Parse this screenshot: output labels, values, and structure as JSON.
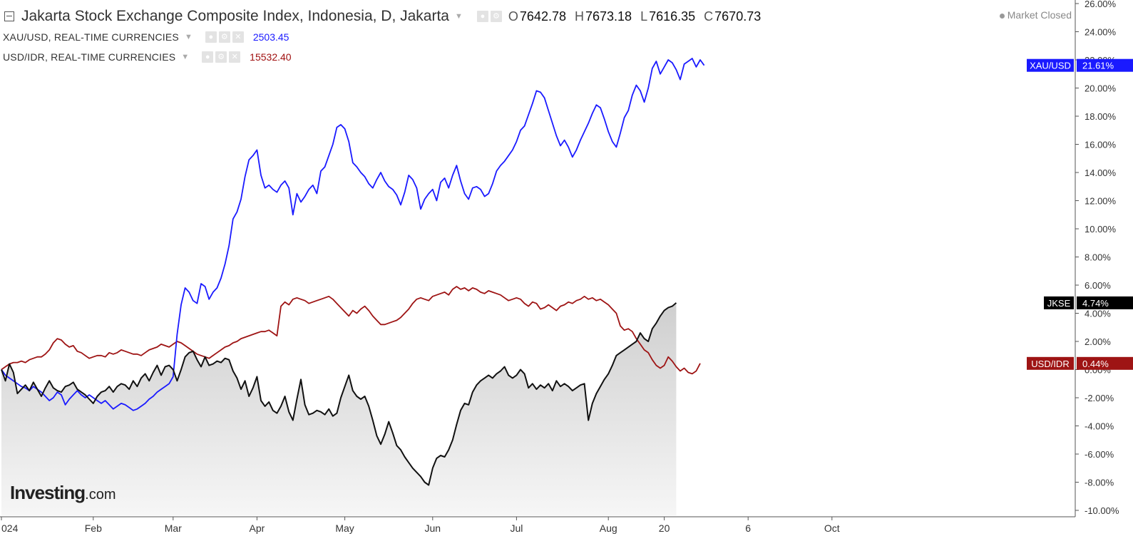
{
  "header": {
    "title": "Jakarta Stock Exchange Composite Index, Indonesia, D, Jakarta",
    "ohlc": [
      {
        "key": "O",
        "value": "7642.78"
      },
      {
        "key": "H",
        "value": "7673.18"
      },
      {
        "key": "L",
        "value": "7616.35"
      },
      {
        "key": "C",
        "value": "7670.73"
      }
    ],
    "status": "Market Closed"
  },
  "compare": [
    {
      "label": "XAU/USD, REAL-TIME CURRENCIES",
      "value": "2503.45",
      "color": "#1a1aff"
    },
    {
      "label": "USD/IDR, REAL-TIME CURRENCIES",
      "value": "15532.40",
      "color": "#a01010"
    }
  ],
  "brand": {
    "name": "Investing",
    "suffix": ".com"
  },
  "colors": {
    "xau": "#1a1aff",
    "idr": "#9e1414",
    "jkse": "#111111",
    "jkse_area_top": "#cfcfcf",
    "jkse_area_bottom": "#f4f4f4",
    "axis": "#333333"
  },
  "chart_data": {
    "type": "line",
    "ylim": [
      -10,
      26
    ],
    "y_unit": "%",
    "y_ticks": [
      "26.00%",
      "24.00%",
      "22.00%",
      "20.00%",
      "18.00%",
      "16.00%",
      "14.00%",
      "12.00%",
      "10.00%",
      "8.00%",
      "6.00%",
      "4.00%",
      "2.00%",
      "0.00%",
      "-2.00%",
      "-4.00%",
      "-6.00%",
      "-8.00%",
      "-10.00%"
    ],
    "x_ticks": [
      {
        "label": "024",
        "i": 0
      },
      {
        "label": "Feb",
        "i": 23
      },
      {
        "label": "Mar",
        "i": 43
      },
      {
        "label": "Apr",
        "i": 64
      },
      {
        "label": "May",
        "i": 86
      },
      {
        "label": "Jun",
        "i": 108
      },
      {
        "label": "Jul",
        "i": 129
      },
      {
        "label": "Aug",
        "i": 152
      },
      {
        "label": "20",
        "i": 166
      },
      {
        "label": "6",
        "i": 187
      },
      {
        "label": "Oct",
        "i": 208
      }
    ],
    "x_max": 222,
    "series": [
      {
        "name": "XAU/USD",
        "last_label": "21.61%",
        "values": [
          0,
          -0.4,
          -0.6,
          -0.8,
          -1.0,
          -1.2,
          -1.3,
          -1.5,
          -1.2,
          -1.4,
          -1.6,
          -1.9,
          -2.2,
          -2.0,
          -1.6,
          -1.8,
          -2.5,
          -2.1,
          -1.8,
          -1.5,
          -1.8,
          -2.0,
          -1.8,
          -2.0,
          -2.2,
          -2.4,
          -2.2,
          -2.5,
          -2.8,
          -2.6,
          -2.4,
          -2.5,
          -2.7,
          -2.9,
          -2.8,
          -2.6,
          -2.4,
          -2.1,
          -1.9,
          -1.6,
          -1.4,
          -1.2,
          -1.0,
          -0.5,
          2.5,
          4.6,
          5.8,
          5.5,
          4.9,
          4.7,
          6.1,
          5.9,
          5.0,
          5.5,
          5.8,
          6.5,
          7.5,
          8.8,
          10.7,
          11.2,
          12.1,
          13.7,
          14.9,
          15.2,
          15.6,
          13.8,
          12.9,
          13.1,
          12.8,
          12.6,
          13.1,
          13.4,
          12.9,
          11.0,
          12.5,
          11.9,
          12.3,
          12.8,
          13.1,
          12.5,
          14.1,
          14.4,
          15.2,
          16.0,
          17.2,
          17.4,
          17.1,
          16.2,
          14.7,
          14.4,
          14.0,
          13.7,
          13.2,
          12.9,
          13.5,
          14.0,
          13.4,
          13.0,
          12.8,
          12.4,
          11.7,
          12.6,
          13.8,
          13.5,
          12.9,
          11.4,
          12.1,
          12.5,
          12.8,
          12.0,
          13.3,
          13.6,
          12.9,
          13.8,
          14.5,
          13.4,
          12.5,
          12.1,
          12.9,
          13.0,
          12.8,
          12.3,
          12.5,
          13.2,
          14.1,
          14.5,
          14.8,
          15.2,
          15.6,
          16.2,
          17.0,
          17.3,
          18.1,
          18.9,
          19.8,
          19.7,
          19.3,
          18.4,
          17.5,
          16.6,
          15.9,
          16.3,
          15.8,
          15.1,
          15.6,
          16.3,
          16.9,
          17.5,
          18.2,
          18.8,
          18.6,
          17.8,
          16.9,
          16.2,
          15.8,
          16.8,
          17.9,
          18.4,
          19.5,
          20.2,
          19.8,
          19.0,
          20.0,
          21.4,
          21.9,
          21.0,
          21.5,
          22.0,
          21.8,
          21.3,
          20.6,
          21.7,
          21.9,
          22.1,
          21.5,
          22.0,
          21.61
        ]
      },
      {
        "name": "USD/IDR",
        "last_label": "0.44%",
        "values": [
          0,
          0.2,
          0.4,
          0.5,
          0.5,
          0.6,
          0.5,
          0.7,
          0.8,
          0.9,
          0.9,
          1.1,
          1.4,
          1.9,
          2.2,
          2.1,
          1.8,
          1.6,
          1.7,
          1.3,
          1.2,
          1.0,
          0.8,
          0.9,
          1.0,
          1.0,
          0.9,
          1.2,
          1.1,
          1.2,
          1.4,
          1.3,
          1.2,
          1.1,
          1.1,
          1.0,
          1.2,
          1.4,
          1.5,
          1.6,
          1.8,
          1.7,
          1.6,
          1.8,
          2.0,
          1.9,
          1.7,
          1.5,
          1.3,
          1.1,
          1.0,
          0.9,
          0.8,
          1.0,
          1.2,
          1.4,
          1.6,
          1.7,
          1.9,
          2.0,
          2.2,
          2.3,
          2.4,
          2.5,
          2.6,
          2.7,
          2.7,
          2.8,
          2.6,
          2.4,
          4.5,
          4.8,
          4.6,
          5.0,
          5.1,
          5.0,
          4.9,
          4.7,
          4.8,
          4.9,
          5.0,
          5.1,
          5.2,
          5.0,
          4.7,
          4.4,
          4.1,
          3.8,
          4.2,
          4.0,
          4.3,
          4.5,
          4.2,
          3.8,
          3.5,
          3.2,
          3.2,
          3.3,
          3.4,
          3.5,
          3.7,
          4.0,
          4.3,
          4.7,
          5.0,
          5.1,
          5.0,
          4.9,
          5.2,
          5.3,
          5.4,
          5.5,
          5.3,
          5.7,
          5.9,
          5.7,
          5.8,
          5.6,
          5.8,
          5.7,
          5.5,
          5.4,
          5.6,
          5.5,
          5.4,
          5.3,
          5.1,
          4.9,
          5.0,
          5.1,
          5.0,
          4.7,
          4.5,
          4.8,
          4.7,
          4.3,
          4.4,
          4.6,
          4.4,
          4.2,
          4.5,
          4.6,
          4.8,
          4.7,
          4.9,
          5.0,
          5.2,
          5.0,
          5.1,
          4.9,
          5.0,
          4.8,
          4.6,
          4.3,
          4.0,
          3.1,
          2.8,
          2.9,
          2.7,
          2.2,
          1.8,
          1.4,
          1.2,
          0.7,
          0.3,
          0.1,
          0.3,
          0.9,
          0.6,
          0.2,
          -0.1,
          0.1,
          -0.2,
          -0.3,
          -0.1,
          0.44
        ]
      },
      {
        "name": "JKSE",
        "last_label": "4.74%",
        "values": [
          0,
          -0.8,
          0.4,
          -0.2,
          -1.7,
          -1.4,
          -1.1,
          -1.5,
          -0.9,
          -1.4,
          -1.9,
          -1.3,
          -0.8,
          -1.3,
          -1.5,
          -1.6,
          -1.2,
          -1.1,
          -0.9,
          -1.4,
          -1.6,
          -1.8,
          -2.1,
          -2.4,
          -1.9,
          -1.6,
          -1.5,
          -1.2,
          -1.6,
          -1.2,
          -1.0,
          -1.1,
          -1.4,
          -0.8,
          -1.2,
          -0.6,
          -0.3,
          -0.8,
          -0.2,
          0.3,
          -0.4,
          0.2,
          0.3,
          0.0,
          -0.8,
          0.0,
          0.9,
          1.2,
          1.3,
          0.7,
          0.2,
          0.9,
          0.3,
          0.4,
          0.6,
          0.5,
          0.8,
          0.7,
          -0.1,
          -0.6,
          -1.4,
          -0.8,
          -1.9,
          -1.3,
          -0.5,
          -2.2,
          -2.6,
          -2.3,
          -2.9,
          -3.1,
          -2.6,
          -1.9,
          -3.0,
          -3.6,
          -2.1,
          -0.7,
          -2.5,
          -3.2,
          -3.1,
          -2.9,
          -3.0,
          -3.2,
          -2.8,
          -3.3,
          -3.1,
          -2.0,
          -1.2,
          -0.4,
          -1.5,
          -1.9,
          -2.1,
          -1.9,
          -2.6,
          -3.6,
          -4.7,
          -5.3,
          -4.6,
          -3.7,
          -4.5,
          -5.4,
          -5.7,
          -6.2,
          -6.6,
          -7.0,
          -7.3,
          -7.6,
          -8.0,
          -8.2,
          -7.0,
          -6.3,
          -6.1,
          -6.2,
          -5.7,
          -5.0,
          -3.9,
          -2.9,
          -2.4,
          -2.5,
          -1.6,
          -1.1,
          -0.8,
          -0.6,
          -0.4,
          -0.6,
          -0.3,
          -0.1,
          0.2,
          -0.4,
          -0.6,
          -0.4,
          0.0,
          -0.3,
          -1.3,
          -1.0,
          -1.4,
          -1.1,
          -1.3,
          -1.0,
          -1.5,
          -0.8,
          -1.2,
          -1.0,
          -1.2,
          -1.5,
          -1.3,
          -1.1,
          -1.0,
          -3.6,
          -2.4,
          -1.7,
          -1.2,
          -0.7,
          -0.3,
          0.3,
          1.0,
          1.2,
          1.4,
          1.6,
          1.8,
          2.0,
          2.6,
          2.2,
          2.0,
          2.9,
          3.3,
          3.8,
          4.2,
          4.4,
          4.5,
          4.74
        ]
      }
    ]
  }
}
